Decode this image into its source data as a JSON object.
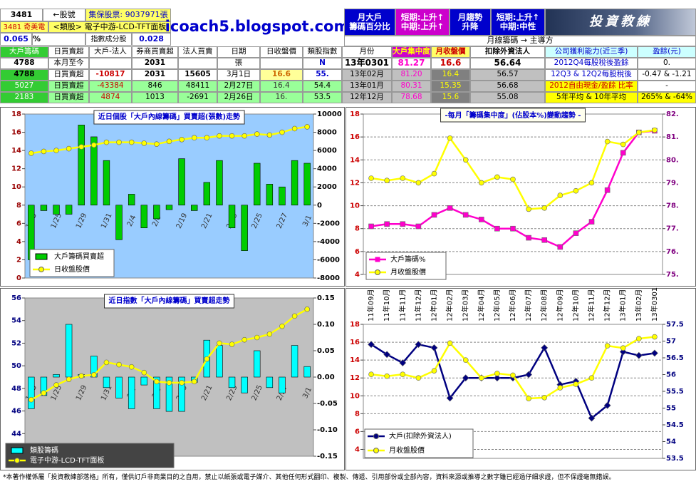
{
  "header": {
    "stock_no": "3481",
    "stock_no_hint": "←股號",
    "shares": "集保股票: 9037971張",
    "stock_name": "3481 奇美電",
    "sector": "<類股> 電子中游-LCD-TFT面板",
    "weight": "0.065",
    "weight_unit": "%",
    "index_member": "指數成分股",
    "index_weight": "0.028",
    "site": "icoach5.blogspot.com",
    "monthly_label": [
      "月大戶",
      "籌碼百分比"
    ],
    "monthly_trend": [
      "短期:上升↑",
      "中期:上升↑"
    ],
    "trend_label": [
      "月趨勢",
      "升降"
    ],
    "trend_value": [
      "短期:上升↑",
      "中期:中性"
    ],
    "logo": "投資教練",
    "main_force": "月線籌碼 → 主導方"
  },
  "table": {
    "header": [
      "大戶籌碼",
      "日買賣超",
      "大戶-法人",
      "券商買賣超",
      "法人買賣",
      "日期",
      "日收盤價",
      "類股指數",
      "月份",
      "大戶集中度",
      "月收盤價",
      "扣除外資法人",
      "公司獲利能力(近三季)",
      "盈餘(元)"
    ],
    "rows": [
      [
        "4788",
        "本月至今",
        null,
        "2031",
        null,
        "張",
        null,
        "N",
        "13年0301",
        "81.27",
        "16.6",
        "56.64",
        "2012Q4每股稅後盈餘",
        "0."
      ],
      [
        "4788",
        "日買賣超",
        "-10817",
        "2031",
        "15605",
        "3月1日",
        "16.6",
        "55.",
        "13年02月",
        "81.20",
        "16.4",
        "56.57",
        "12Q3 & 12Q2每股稅後",
        "-0.47 & -1.21"
      ],
      [
        "5027",
        "日買賣超",
        "-43384",
        "846",
        "48411",
        "2月27日",
        "16.4",
        "54.4",
        "13年01月",
        "80.31",
        "15.35",
        "56.68",
        "2012自由現金/盈餘 比率",
        "-"
      ],
      [
        "2183",
        "日買賣超",
        "4874",
        "1013",
        "-2691",
        "2月26日",
        "16.",
        "53.5",
        "12年12月",
        "78.68",
        "15.6",
        "55.08",
        "5年平均 & 10年平均",
        "265% & -64%"
      ]
    ]
  },
  "chart_data": [
    {
      "type": "bar",
      "title": "近日個股「大戶內線籌碼」買賣超(張數)走勢",
      "legend": "lower left",
      "grid": false,
      "categories": [
        "1/23",
        null,
        "1/25",
        null,
        "1/29",
        null,
        "1/31",
        null,
        "2/4",
        null,
        "2/6",
        null,
        "2/19",
        null,
        "2/21",
        null,
        "2/23",
        null,
        "2/25",
        null,
        "2/27",
        null,
        "3/1"
      ],
      "ylim": [
        0,
        18
      ],
      "yticks": [
        0,
        2,
        4,
        6,
        8,
        10,
        12,
        14,
        16,
        18
      ],
      "y2lim": [
        -8000,
        10000
      ],
      "y2ticks": [
        -8000,
        -6000,
        -4000,
        -2000,
        0,
        2000,
        4000,
        6000,
        8000,
        10000
      ],
      "series": [
        {
          "name": "大戶籌碼買賣超",
          "type": "bar",
          "axis": "y2",
          "color": "#00cc00",
          "values": [
            -6000,
            -600,
            -1000,
            -1000,
            8800,
            7500,
            4900,
            -3800,
            1200,
            -2500,
            -1500,
            -500,
            5100,
            -600,
            2500,
            4900,
            -2500,
            -5000,
            4600,
            2300,
            2000,
            4900,
            4600
          ]
        },
        {
          "name": "日收盤股價",
          "type": "line",
          "axis": "y",
          "color": "#ffff00",
          "marker": "circle",
          "values": [
            13.7,
            13.9,
            14.0,
            14.2,
            14.4,
            14.6,
            14.9,
            14.9,
            14.9,
            14.8,
            14.7,
            15.0,
            15.2,
            15.4,
            15.4,
            15.6,
            15.6,
            15.6,
            15.8,
            15.7,
            16.0,
            16.4,
            16.6
          ]
        }
      ]
    },
    {
      "type": "line",
      "title": "-每月「籌碼集中度」(佔股本%)變動趨勢 -",
      "legend": "lower left",
      "grid": true,
      "ylim": [
        4,
        18
      ],
      "yticks": [
        4,
        6,
        8,
        10,
        12,
        14,
        16,
        18
      ],
      "y2lim": [
        75,
        82
      ],
      "y2ticks": [
        {
          "value": 75,
          "label": "75."
        },
        {
          "value": 76,
          "label": "76."
        },
        {
          "value": 77,
          "label": "77."
        },
        {
          "value": 78,
          "label": "78."
        },
        {
          "value": 79,
          "label": "79."
        },
        {
          "value": 80,
          "label": "80."
        },
        {
          "value": 81,
          "label": "81."
        },
        {
          "value": 82,
          "label": "82."
        }
      ],
      "series": [
        {
          "name": "大戶籌碼%",
          "type": "line",
          "axis": "y2",
          "color": "#ff00cc",
          "marker": "square",
          "values": [
            77.1,
            77.2,
            77.2,
            77.1,
            77.6,
            77.9,
            77.6,
            77.4,
            77.0,
            77.0,
            76.6,
            76.5,
            76.2,
            76.8,
            77.3,
            78.68,
            80.31,
            81.2,
            81.27
          ]
        },
        {
          "name": "月收盤股價",
          "type": "line",
          "axis": "y",
          "color": "#ffff00",
          "marker": "circle",
          "values": [
            12.4,
            12.2,
            12.4,
            12.0,
            12.8,
            15.9,
            14.0,
            12.0,
            12.5,
            12.3,
            9.7,
            9.8,
            10.9,
            11.3,
            12.0,
            15.6,
            15.35,
            16.4,
            16.6
          ]
        }
      ]
    },
    {
      "type": "bar",
      "title": "近日指數「大戶內線籌碼」買賣超走勢",
      "legend": "lower left",
      "grid": false,
      "categories": [
        "1/23",
        null,
        "1/25",
        null,
        "1/29",
        null,
        "1/31",
        null,
        "2/4",
        null,
        "2/6",
        null,
        "2/19",
        null,
        "2/21",
        null,
        "2/23",
        null,
        "2/25",
        null,
        "2/27",
        null,
        "3/1"
      ],
      "ylim": [
        42,
        56
      ],
      "yticks": [
        44,
        46,
        48,
        50,
        52,
        54,
        56
      ],
      "y2lim": [
        -0.15,
        0.15
      ],
      "y2ticks": [
        {
          "value": -0.15,
          "label": "-0.15"
        },
        {
          "value": -0.1,
          "label": "-0.10"
        },
        -0.05,
        {
          "value": 0,
          "label": "0.00"
        },
        0.05,
        {
          "value": 0.1,
          "label": "0.10"
        },
        0.15
      ],
      "series": [
        {
          "name": "類股籌碼",
          "type": "bar",
          "axis": "y2",
          "color": "#00ffff",
          "values": [
            -0.06,
            -0.035,
            0.005,
            0.1,
            0.005,
            0.04,
            -0.02,
            -0.04,
            -0.06,
            -0.015,
            -0.06,
            -0.065,
            -0.065,
            -0.01,
            0.07,
            0.06,
            -0.02,
            -0.03,
            0.05,
            -0.02,
            -0.03,
            0.06,
            0.02
          ]
        },
        {
          "name": "電子中游-LCD-TFT面板",
          "type": "line",
          "axis": "y",
          "color": "#ffff00",
          "marker": "circle",
          "values": [
            47.0,
            47.6,
            48.3,
            48.8,
            49.1,
            49.2,
            50.3,
            50.1,
            49.9,
            49.4,
            48.6,
            48.5,
            48.5,
            48.6,
            50.6,
            52.0,
            51.9,
            52.3,
            52.5,
            52.8,
            53.5,
            54.4,
            55.0
          ]
        }
      ]
    },
    {
      "type": "line",
      "legend": "lower left",
      "grid": true,
      "categories": [
        "11年09月",
        "11年10月",
        "11年11月",
        "11年12月",
        "12年01月",
        "12年02月",
        "12年03月",
        "12年04月",
        "12年05月",
        "12年06月",
        "12年07月",
        "12年08月",
        "12年09月",
        "12年10月",
        "12年11月",
        "12年12月",
        "13年01月",
        "13年02月",
        "13年0301"
      ],
      "ylim": [
        3,
        18
      ],
      "yticks": [
        4,
        6,
        8,
        10,
        12,
        14,
        16,
        18
      ],
      "y2lim": [
        53.5,
        57.5
      ],
      "y2ticks": [
        53.5,
        54,
        54.5,
        55,
        55.5,
        56,
        56.5,
        57,
        57.5
      ],
      "series": [
        {
          "name": "大戶(扣除外資法人)",
          "type": "line",
          "axis": "y2",
          "color": "#000080",
          "marker": "diamond",
          "values": [
            56.9,
            56.6,
            56.35,
            56.9,
            56.8,
            55.3,
            55.9,
            55.9,
            55.9,
            55.9,
            56.0,
            56.8,
            55.7,
            55.8,
            54.7,
            55.08,
            56.68,
            56.57,
            56.64
          ]
        },
        {
          "name": "月收盤股價",
          "type": "line",
          "axis": "y",
          "color": "#ffff00",
          "marker": "circle",
          "values": [
            12.4,
            12.2,
            12.4,
            12.0,
            12.8,
            15.9,
            14.0,
            12.0,
            12.5,
            12.3,
            9.7,
            9.8,
            10.9,
            11.3,
            12.0,
            15.6,
            15.35,
            16.4,
            16.6
          ]
        }
      ]
    }
  ],
  "footer": "*本著作權係屬「投資教練部落格」所有，僅供訂戶非商業目的之自用，禁止以紙張或電子媒介、其他任何形式翻印、複製、傳遞、引用部份或全部內容，資料來源或推導之數字雖已經過仔細求證，但不保證毫無錯誤。"
}
